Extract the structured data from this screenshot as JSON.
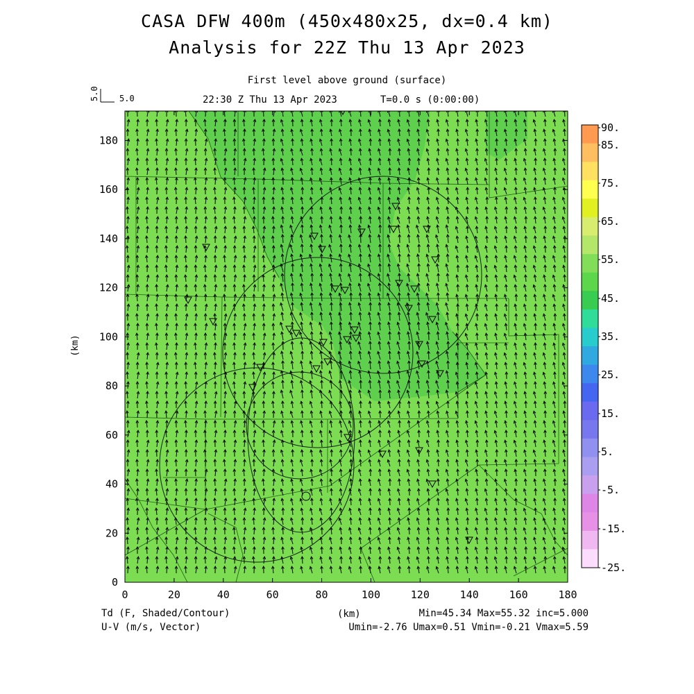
{
  "title": {
    "line1": "CASA DFW 400m (450x480x25, dx=0.4 km)",
    "line2": "Analysis for 22Z Thu 13 Apr 2023"
  },
  "subtitle": {
    "level": "First level above ground (surface)",
    "valid": "22:30 Z Thu 13 Apr 2023",
    "time": "T=0.0 s (0:00:00)"
  },
  "vector_key": {
    "x_label": "5.0",
    "y_label": "5.0"
  },
  "axes": {
    "x_ticks": [
      "0",
      "20",
      "40",
      "60",
      "80",
      "100",
      "120",
      "140",
      "160",
      "180"
    ],
    "y_ticks": [
      "0",
      "20",
      "40",
      "60",
      "80",
      "100",
      "120",
      "140",
      "160",
      "180"
    ],
    "x_label": "(km)",
    "y_label": "(km)",
    "x_range": [
      0,
      180
    ],
    "y_range": [
      0,
      192
    ]
  },
  "colorbar": {
    "labels": [
      "90.",
      "85.",
      "75.",
      "65.",
      "55.",
      "45.",
      "35.",
      "25.",
      "15.",
      "5.",
      "-5.",
      "-15.",
      "-25."
    ],
    "colors": [
      "#ff9a50",
      "#ffbf60",
      "#ffe060",
      "#ffff50",
      "#e0f020",
      "#d8ec70",
      "#b4e66a",
      "#82dd58",
      "#5cd64a",
      "#38cc50",
      "#30dc9a",
      "#28cccc",
      "#30a8e0",
      "#3c88ec",
      "#4466f0",
      "#6a6af0",
      "#7878ee",
      "#9090f0",
      "#aa9ef0",
      "#c8a0ee",
      "#de86e6",
      "#e690e6",
      "#f0b8f0",
      "#fcdcfc"
    ]
  },
  "footer": {
    "var1": "Td (F, Shaded/Contour)",
    "var2": "U-V (m/s, Vector)",
    "x_unit": "(km)",
    "stats1": "Min=45.34 Max=55.32 inc=5.000",
    "stats2": "Umin=-2.76 Umax=0.51 Vmin=-0.21 Vmax=5.59"
  },
  "field": {
    "base_color": "#7cdc52",
    "moist_color": "#5ed04e"
  }
}
